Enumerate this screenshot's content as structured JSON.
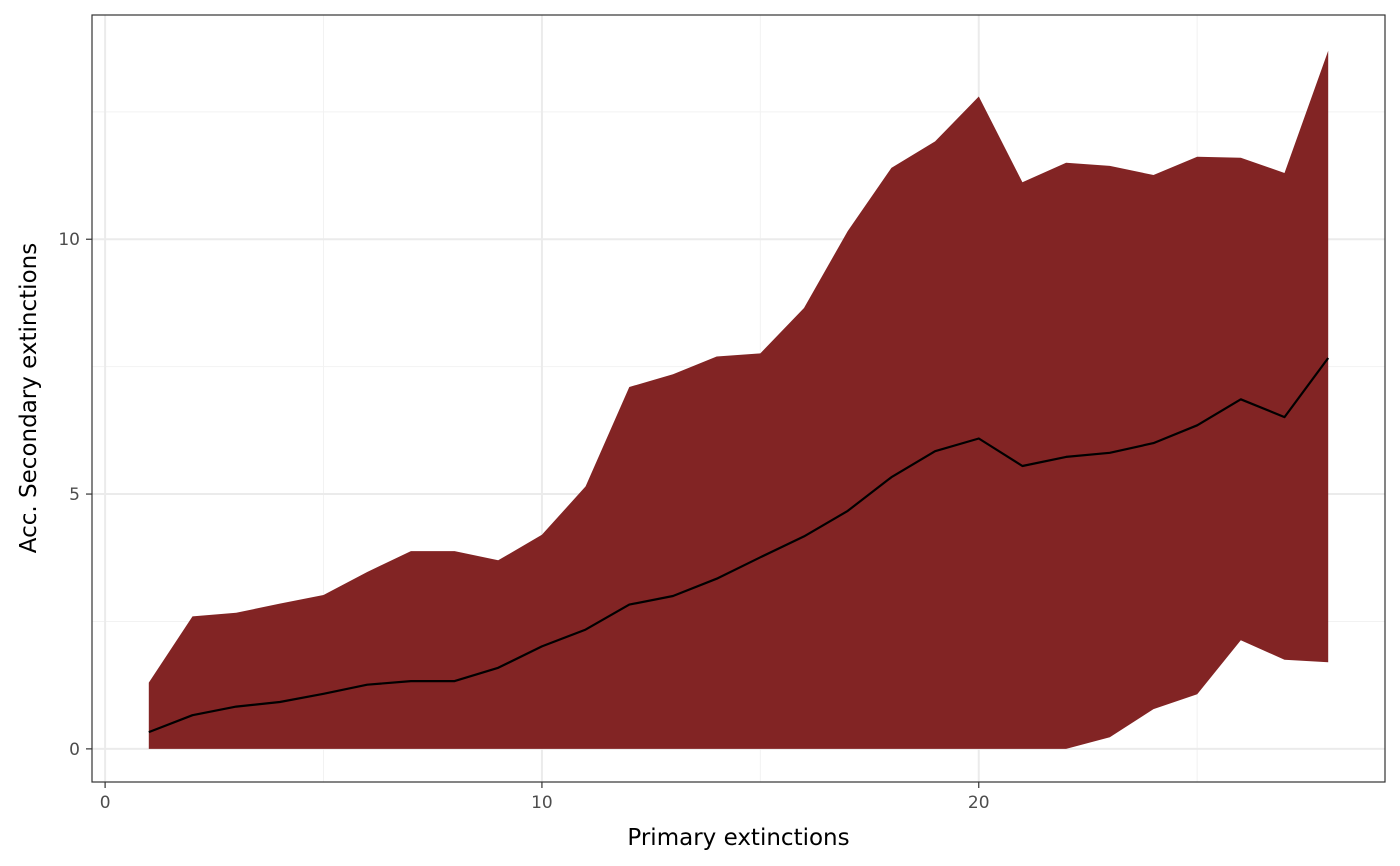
{
  "chart_data": {
    "type": "area",
    "xlabel": "Primary extinctions",
    "ylabel": "Acc. Secondary extinctions",
    "xlim": [
      -0.3,
      29.3
    ],
    "ylim": [
      -0.65,
      14.4
    ],
    "x_ticks": [
      0,
      10,
      20
    ],
    "y_ticks": [
      0,
      5,
      10
    ],
    "x_minor": [
      5,
      15,
      25
    ],
    "y_minor": [
      2.5,
      7.5,
      12.5
    ],
    "grid": true,
    "legend": "none",
    "x": [
      1,
      2,
      3,
      4,
      5,
      6,
      7,
      8,
      9,
      10,
      11,
      12,
      13,
      14,
      15,
      16,
      17,
      18,
      19,
      20,
      21,
      22,
      23,
      24,
      25,
      26,
      27,
      28
    ],
    "series": [
      {
        "role": "band",
        "upper": [
          1.3,
          2.6,
          2.67,
          2.85,
          3.02,
          3.47,
          3.88,
          3.88,
          3.7,
          4.2,
          5.15,
          7.1,
          7.35,
          7.7,
          7.76,
          8.65,
          10.16,
          11.4,
          11.92,
          12.8,
          11.12,
          11.5,
          11.44,
          11.26,
          11.62,
          11.6,
          11.3,
          13.7
        ],
        "lower": [
          0,
          0,
          0,
          0,
          0,
          0,
          0,
          0,
          0,
          0,
          0,
          0,
          0,
          0,
          0,
          0,
          0,
          0,
          0,
          0,
          0,
          0,
          0.23,
          0.78,
          1.07,
          2.13,
          1.75,
          1.7
        ],
        "color": "#822424"
      },
      {
        "role": "mean",
        "values": [
          0.33,
          0.66,
          0.83,
          0.92,
          1.08,
          1.26,
          1.33,
          1.33,
          1.59,
          2.01,
          2.34,
          2.83,
          3.0,
          3.34,
          3.76,
          4.17,
          4.67,
          5.33,
          5.84,
          6.09,
          5.55,
          5.73,
          5.81,
          6.0,
          6.35,
          6.86,
          6.51,
          7.67
        ],
        "color": "#000000"
      }
    ]
  }
}
